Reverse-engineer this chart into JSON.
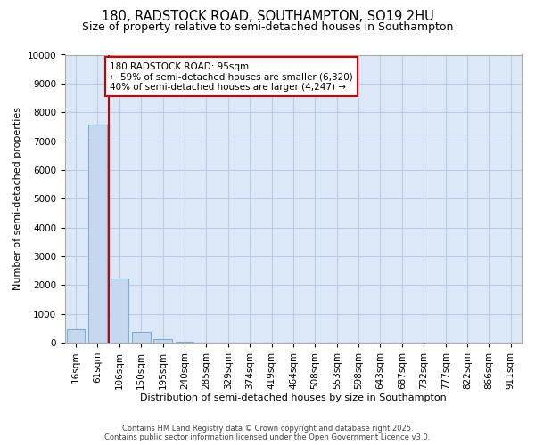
{
  "title_line1": "180, RADSTOCK ROAD, SOUTHAMPTON, SO19 2HU",
  "title_line2": "Size of property relative to semi-detached houses in Southampton",
  "xlabel": "Distribution of semi-detached houses by size in Southampton",
  "ylabel": "Number of semi-detached properties",
  "categories": [
    "16sqm",
    "61sqm",
    "106sqm",
    "150sqm",
    "195sqm",
    "240sqm",
    "285sqm",
    "329sqm",
    "374sqm",
    "419sqm",
    "464sqm",
    "508sqm",
    "553sqm",
    "598sqm",
    "643sqm",
    "687sqm",
    "732sqm",
    "777sqm",
    "822sqm",
    "866sqm",
    "911sqm"
  ],
  "values": [
    480,
    7580,
    2220,
    380,
    130,
    30,
    0,
    0,
    0,
    0,
    0,
    0,
    0,
    0,
    0,
    0,
    0,
    0,
    0,
    0,
    0
  ],
  "bar_color": "#c5d8f0",
  "bar_edge_color": "#7bafd4",
  "vline_color": "#cc0000",
  "annotation_text": "180 RADSTOCK ROAD: 95sqm\n← 59% of semi-detached houses are smaller (6,320)\n40% of semi-detached houses are larger (4,247) →",
  "annotation_box_facecolor": "white",
  "annotation_box_edgecolor": "#cc0000",
  "ylim": [
    0,
    10000
  ],
  "yticks": [
    0,
    1000,
    2000,
    3000,
    4000,
    5000,
    6000,
    7000,
    8000,
    9000,
    10000
  ],
  "footer_text": "Contains HM Land Registry data © Crown copyright and database right 2025.\nContains public sector information licensed under the Open Government Licence v3.0.",
  "bg_color": "#ffffff",
  "plot_bg_color": "#dce8f8",
  "grid_color": "#b8cce4",
  "title_fontsize": 10.5,
  "subtitle_fontsize": 9,
  "tick_fontsize": 7.5,
  "ylabel_fontsize": 8,
  "xlabel_fontsize": 8,
  "footer_fontsize": 6,
  "annot_fontsize": 7.5
}
